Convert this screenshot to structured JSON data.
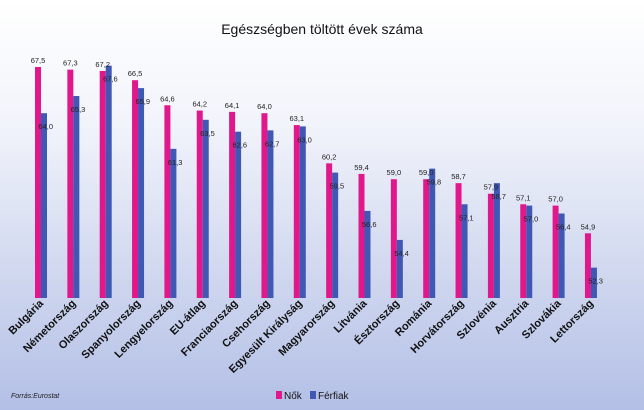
{
  "chart_data": {
    "type": "bar",
    "title": "Egészségben töltött évek száma",
    "categories": [
      "Bulgária",
      "Németország",
      "Olaszország",
      "Spanyolország",
      "Lengyelország",
      "EU-átlag",
      "Franciaország",
      "Csehország",
      "Egyesült Királyság",
      "Magyarország",
      "Litvánia",
      "Észtország",
      "Románia",
      "Horvátország",
      "Szlovénia",
      "Ausztria",
      "Szlovákia",
      "Lettország"
    ],
    "series": [
      {
        "name": "Nők",
        "color": "#e0188c",
        "values": [
          67.5,
          67.3,
          67.2,
          66.5,
          64.6,
          64.2,
          64.1,
          64.0,
          63.1,
          60.2,
          59.4,
          59.0,
          59.0,
          58.7,
          57.9,
          57.1,
          57.0,
          54.9
        ]
      },
      {
        "name": "Férfiak",
        "color": "#3f58b3",
        "values": [
          64.0,
          65.3,
          67.6,
          65.9,
          61.3,
          63.5,
          62.6,
          62.7,
          63.0,
          59.5,
          56.6,
          54.4,
          59.8,
          57.1,
          58.7,
          57.0,
          56.4,
          52.3
        ]
      }
    ],
    "value_labels": {
      "Nők": [
        "67,5",
        "67,3",
        "67,2",
        "66,5",
        "64,6",
        "64,2",
        "64,1",
        "64,0",
        "63,1",
        "60,2",
        "59,4",
        "59,0",
        "59,0",
        "58,7",
        "57,9",
        "57,1",
        "57,0",
        "54,9"
      ],
      "Férfiak": [
        "64,0",
        "65,3",
        "67,6",
        "65,9",
        "61,3",
        "63,5",
        "62,6",
        "62,7",
        "63,0",
        "59,5",
        "56,6",
        "54,4",
        "59,8",
        "57,1",
        "58,7",
        "57,0",
        "56,4",
        "52,3"
      ]
    },
    "xlabel": "",
    "ylabel": "",
    "grid": false,
    "legend_position": "bottom-center"
  },
  "source": "Forrás:Eurostat"
}
